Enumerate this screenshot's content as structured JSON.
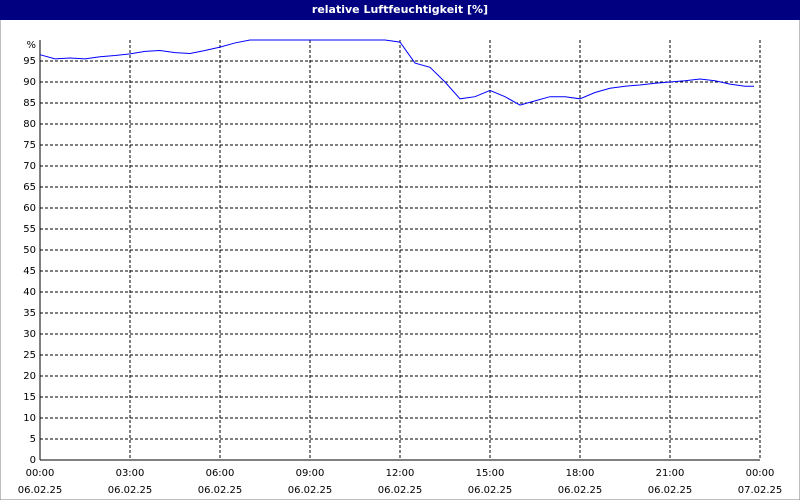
{
  "chart_data": {
    "type": "line",
    "title": "relative Luftfeuchtigkeit [%]",
    "y_unit": "%",
    "xlim": [
      0,
      24
    ],
    "xticks": [
      {
        "value": 0,
        "label": "00:00"
      },
      {
        "value": 3,
        "label": "03:00"
      },
      {
        "value": 6,
        "label": "06:00"
      },
      {
        "value": 9,
        "label": "09:00"
      },
      {
        "value": 12,
        "label": "12:00"
      },
      {
        "value": 15,
        "label": "15:00"
      },
      {
        "value": 18,
        "label": "18:00"
      },
      {
        "value": 21,
        "label": "21:00"
      },
      {
        "value": 24,
        "label": "00:00"
      }
    ],
    "xtick_dates": [
      "06.02.25",
      "06.02.25",
      "06.02.25",
      "06.02.25",
      "06.02.25",
      "06.02.25",
      "06.02.25",
      "06.02.25",
      "07.02.25"
    ],
    "ylim": [
      0,
      100
    ],
    "yticks": [
      0,
      5,
      10,
      15,
      20,
      25,
      30,
      35,
      40,
      45,
      50,
      55,
      60,
      65,
      70,
      75,
      80,
      85,
      90,
      95
    ],
    "grid": true,
    "series": [
      {
        "color": "#0000ff",
        "x": [
          0,
          0.5,
          1,
          1.5,
          2,
          2.5,
          3,
          3.5,
          4,
          4.5,
          5,
          5.5,
          6,
          6.5,
          7,
          7.5,
          8,
          8.5,
          9,
          9.5,
          10,
          10.5,
          11,
          11.5,
          12,
          12.5,
          13,
          13.5,
          14,
          14.5,
          15,
          15.5,
          16,
          16.5,
          17,
          17.5,
          18,
          18.5,
          19,
          19.5,
          20,
          20.5,
          21,
          21.5,
          22,
          22.5,
          23,
          23.5,
          23.8
        ],
        "values": [
          96.5,
          95.5,
          95.7,
          95.5,
          96,
          96.3,
          96.7,
          97.3,
          97.5,
          97,
          96.8,
          97.5,
          98.3,
          99.3,
          100,
          100,
          100,
          100,
          100,
          100,
          100,
          100,
          100,
          100,
          99.5,
          94.5,
          93.5,
          90,
          86,
          86.5,
          88,
          86.5,
          84.5,
          85.5,
          86.5,
          86.5,
          86,
          87.5,
          88.5,
          89,
          89.3,
          89.7,
          90,
          90.3,
          90.7,
          90.3,
          89.5,
          89,
          89
        ]
      }
    ]
  }
}
